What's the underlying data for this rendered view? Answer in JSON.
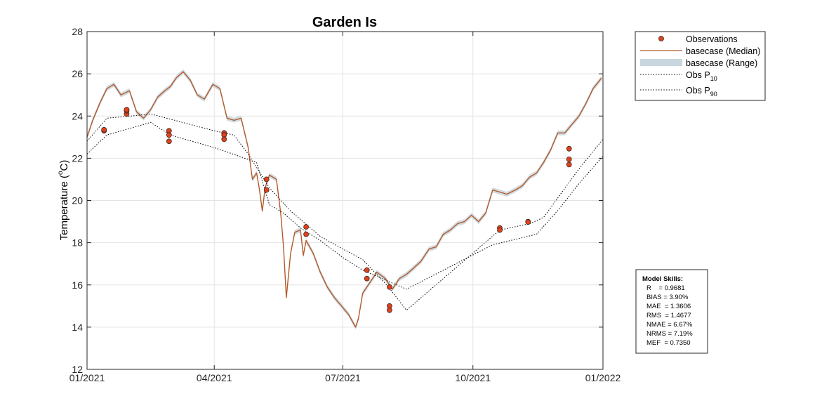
{
  "chart_data": {
    "type": "line",
    "title": "Garden Is",
    "xlabel": "",
    "ylabel_text": "Temperature (",
    "ylabel_sup": "o",
    "ylabel_tail": "C)",
    "x_tick_labels": [
      "01/2021",
      "04/2021",
      "07/2021",
      "10/2021",
      "01/2022"
    ],
    "x_range": [
      "2021-01-01",
      "2022-01-01"
    ],
    "ylim": [
      12,
      28
    ],
    "y_ticks": [
      12,
      14,
      16,
      18,
      20,
      22,
      24,
      26,
      28
    ],
    "grid": true,
    "legend_placement": "outside-top-right",
    "legend": [
      {
        "key": "obs",
        "label": "Observations"
      },
      {
        "key": "median",
        "label": "basecase (Median)"
      },
      {
        "key": "range",
        "label": "basecase (Range)"
      },
      {
        "key": "p10",
        "label_main": "Obs P",
        "label_sub": "10"
      },
      {
        "key": "p90",
        "label_main": "Obs P",
        "label_sub": "90"
      }
    ],
    "colors": {
      "median": "#b35a2a",
      "range": "#c9d6dd",
      "obs_fill": "#e2401e",
      "obs_edge": "#3a2a20",
      "percentile": "#000000",
      "grid": "#e3e3e3",
      "axis": "#262626"
    },
    "series": [
      {
        "name": "basecase (Median)",
        "x": [
          "2021-01-01",
          "2021-01-05",
          "2021-01-10",
          "2021-01-15",
          "2021-01-20",
          "2021-01-25",
          "2021-01-31",
          "2021-02-05",
          "2021-02-10",
          "2021-02-15",
          "2021-02-20",
          "2021-02-25",
          "2021-03-01",
          "2021-03-05",
          "2021-03-10",
          "2021-03-15",
          "2021-03-20",
          "2021-03-25",
          "2021-03-31",
          "2021-04-05",
          "2021-04-10",
          "2021-04-15",
          "2021-04-20",
          "2021-04-25",
          "2021-04-28",
          "2021-05-01",
          "2021-05-03",
          "2021-05-05",
          "2021-05-07",
          "2021-05-10",
          "2021-05-15",
          "2021-05-18",
          "2021-05-20",
          "2021-05-22",
          "2021-05-25",
          "2021-05-28",
          "2021-06-01",
          "2021-06-03",
          "2021-06-05",
          "2021-06-10",
          "2021-06-15",
          "2021-06-20",
          "2021-06-25",
          "2021-06-30",
          "2021-07-05",
          "2021-07-10",
          "2021-07-12",
          "2021-07-15",
          "2021-07-20",
          "2021-07-25",
          "2021-07-31",
          "2021-08-05",
          "2021-08-10",
          "2021-08-15",
          "2021-08-20",
          "2021-08-25",
          "2021-08-31",
          "2021-09-05",
          "2021-09-10",
          "2021-09-15",
          "2021-09-20",
          "2021-09-25",
          "2021-09-30",
          "2021-10-05",
          "2021-10-10",
          "2021-10-15",
          "2021-10-20",
          "2021-10-25",
          "2021-10-31",
          "2021-11-05",
          "2021-11-10",
          "2021-11-15",
          "2021-11-20",
          "2021-11-25",
          "2021-11-30",
          "2021-12-05",
          "2021-12-10",
          "2021-12-15",
          "2021-12-20",
          "2021-12-25",
          "2021-12-31"
        ],
        "values": [
          23.0,
          23.8,
          24.6,
          25.3,
          25.5,
          25.0,
          25.2,
          24.2,
          23.9,
          24.3,
          24.9,
          25.2,
          25.4,
          25.8,
          26.1,
          25.7,
          25.0,
          24.8,
          25.5,
          25.3,
          23.9,
          23.8,
          23.9,
          22.5,
          21.0,
          21.3,
          20.5,
          19.5,
          20.6,
          21.2,
          21.0,
          19.4,
          17.8,
          15.4,
          17.5,
          18.5,
          18.6,
          17.4,
          18.1,
          17.5,
          16.6,
          15.9,
          15.4,
          15.0,
          14.6,
          14.0,
          14.4,
          15.6,
          16.1,
          16.6,
          16.3,
          15.8,
          16.3,
          16.5,
          16.8,
          17.1,
          17.7,
          17.8,
          18.4,
          18.6,
          18.9,
          19.0,
          19.3,
          19.0,
          19.4,
          20.5,
          20.4,
          20.3,
          20.5,
          20.7,
          21.1,
          21.3,
          21.8,
          22.4,
          23.2,
          23.2,
          23.6,
          24.0,
          24.6,
          25.3,
          25.8
        ]
      },
      {
        "name": "Obs P10",
        "x": [
          "2021-01-01",
          "2021-01-15",
          "2021-02-15",
          "2021-03-01",
          "2021-04-01",
          "2021-04-10",
          "2021-05-01",
          "2021-05-10",
          "2021-05-20",
          "2021-06-01",
          "2021-06-15",
          "2021-07-01",
          "2021-07-15",
          "2021-08-01",
          "2021-08-15",
          "2021-10-15",
          "2021-11-15",
          "2021-12-01",
          "2021-12-15",
          "2022-01-01"
        ],
        "values": [
          22.2,
          23.1,
          23.7,
          23.1,
          22.5,
          22.3,
          21.8,
          19.8,
          19.4,
          18.7,
          18.1,
          17.3,
          16.7,
          16.2,
          15.8,
          17.9,
          18.4,
          19.6,
          20.8,
          22.1
        ]
      },
      {
        "name": "Obs P90",
        "x": [
          "2021-01-01",
          "2021-01-15",
          "2021-02-01",
          "2021-02-15",
          "2021-04-01",
          "2021-04-15",
          "2021-04-25",
          "2021-05-10",
          "2021-05-25",
          "2021-06-15",
          "2021-07-01",
          "2021-07-15",
          "2021-08-01",
          "2021-08-15",
          "2021-10-20",
          "2021-11-10",
          "2021-11-20",
          "2021-12-15",
          "2022-01-01"
        ],
        "values": [
          22.8,
          23.9,
          24.0,
          24.1,
          23.3,
          23.1,
          22.2,
          20.6,
          19.5,
          18.3,
          17.7,
          17.2,
          16.0,
          14.8,
          18.6,
          18.9,
          19.2,
          21.5,
          22.9
        ]
      }
    ],
    "observations": {
      "name": "Observations",
      "x": [
        "2021-01-13",
        "2021-01-13",
        "2021-01-29",
        "2021-01-29",
        "2021-01-29",
        "2021-02-28",
        "2021-02-28",
        "2021-02-28",
        "2021-04-08",
        "2021-04-08",
        "2021-04-08",
        "2021-05-08",
        "2021-05-08",
        "2021-06-05",
        "2021-06-05",
        "2021-07-18",
        "2021-07-18",
        "2021-08-03",
        "2021-08-03",
        "2021-08-03",
        "2021-10-20",
        "2021-10-20",
        "2021-11-09",
        "2021-11-09",
        "2021-12-08",
        "2021-12-08",
        "2021-12-08"
      ],
      "values": [
        23.3,
        23.35,
        24.1,
        24.25,
        24.3,
        23.3,
        23.1,
        22.8,
        23.2,
        23.1,
        22.9,
        21.0,
        20.5,
        18.75,
        18.4,
        16.7,
        16.3,
        15.9,
        15.0,
        14.8,
        18.7,
        18.6,
        19.0,
        18.98,
        22.45,
        21.95,
        21.7
      ]
    }
  },
  "model_skills": {
    "title": "Model Skills:",
    "lines": [
      "R    = 0.9681",
      "BIAS = 3.90%",
      "MAE  = 1.3606",
      "RMS  = 1.4677",
      "NMAE = 6.67%",
      "NRMS = 7.19%",
      "MEF  = 0.7350"
    ]
  }
}
